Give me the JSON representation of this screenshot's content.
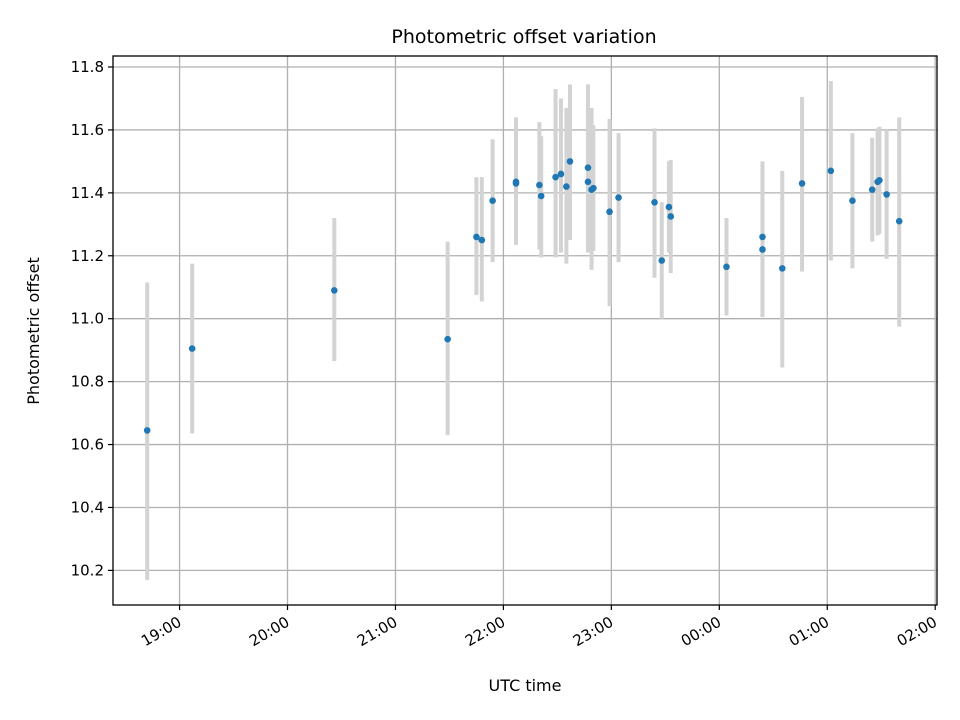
{
  "chart_data": {
    "type": "scatter",
    "title": "Photometric offset variation",
    "xlabel": "UTC time",
    "ylabel": "Photometric offset",
    "x_axis_type": "time",
    "xlim": [
      "18:23",
      "02:01"
    ],
    "ylim": [
      10.09,
      11.835
    ],
    "x_ticks": [
      "19:00",
      "20:00",
      "21:00",
      "22:00",
      "23:00",
      "00:00",
      "01:00",
      "02:00"
    ],
    "y_ticks": [
      10.2,
      10.4,
      10.6,
      10.8,
      11.0,
      11.2,
      11.4,
      11.6,
      11.8
    ],
    "y_tick_labels": [
      "10.2",
      "10.4",
      "10.6",
      "10.8",
      "11.0",
      "11.2",
      "11.4",
      "11.6",
      "11.8"
    ],
    "grid": true,
    "marker_color": "#1f77b4",
    "errorbar_color": "#d3d3d3",
    "points": [
      {
        "t": "18:42",
        "y": 10.645,
        "lo": 10.17,
        "hi": 11.115
      },
      {
        "t": "19:07",
        "y": 10.905,
        "lo": 10.635,
        "hi": 11.175
      },
      {
        "t": "20:26",
        "y": 11.09,
        "lo": 10.865,
        "hi": 11.32
      },
      {
        "t": "21:29",
        "y": 10.935,
        "lo": 10.63,
        "hi": 11.245
      },
      {
        "t": "21:45",
        "y": 11.26,
        "lo": 11.075,
        "hi": 11.45
      },
      {
        "t": "21:48",
        "y": 11.25,
        "lo": 11.055,
        "hi": 11.45
      },
      {
        "t": "21:54",
        "y": 11.375,
        "lo": 11.18,
        "hi": 11.57
      },
      {
        "t": "22:07",
        "y": 11.435,
        "lo": 11.235,
        "hi": 11.64
      },
      {
        "t": "22:07",
        "y": 11.43,
        "lo": 11.235,
        "hi": 11.62
      },
      {
        "t": "22:20",
        "y": 11.425,
        "lo": 11.22,
        "hi": 11.625
      },
      {
        "t": "22:21",
        "y": 11.39,
        "lo": 11.195,
        "hi": 11.58
      },
      {
        "t": "22:29",
        "y": 11.45,
        "lo": 11.195,
        "hi": 11.73
      },
      {
        "t": "22:32",
        "y": 11.46,
        "lo": 11.21,
        "hi": 11.7
      },
      {
        "t": "22:35",
        "y": 11.42,
        "lo": 11.175,
        "hi": 11.67
      },
      {
        "t": "22:37",
        "y": 11.5,
        "lo": 11.25,
        "hi": 11.745
      },
      {
        "t": "22:47",
        "y": 11.48,
        "lo": 11.215,
        "hi": 11.745
      },
      {
        "t": "22:47",
        "y": 11.435,
        "lo": 11.21,
        "hi": 11.65
      },
      {
        "t": "22:49",
        "y": 11.41,
        "lo": 11.155,
        "hi": 11.67
      },
      {
        "t": "22:50",
        "y": 11.415,
        "lo": 11.215,
        "hi": 11.615
      },
      {
        "t": "22:59",
        "y": 11.34,
        "lo": 11.04,
        "hi": 11.635
      },
      {
        "t": "23:04",
        "y": 11.385,
        "lo": 11.18,
        "hi": 11.59
      },
      {
        "t": "23:24",
        "y": 11.37,
        "lo": 11.13,
        "hi": 11.605
      },
      {
        "t": "23:28",
        "y": 11.185,
        "lo": 11.0,
        "hi": 11.37
      },
      {
        "t": "23:32",
        "y": 11.355,
        "lo": 11.21,
        "hi": 11.5
      },
      {
        "t": "23:33",
        "y": 11.325,
        "lo": 11.145,
        "hi": 11.505
      },
      {
        "t": "00:04",
        "y": 11.165,
        "lo": 11.01,
        "hi": 11.32
      },
      {
        "t": "00:24",
        "y": 11.26,
        "lo": 11.015,
        "hi": 11.5
      },
      {
        "t": "00:24",
        "y": 11.22,
        "lo": 11.005,
        "hi": 11.44
      },
      {
        "t": "00:35",
        "y": 11.16,
        "lo": 10.845,
        "hi": 11.47
      },
      {
        "t": "00:46",
        "y": 11.43,
        "lo": 11.15,
        "hi": 11.705
      },
      {
        "t": "01:02",
        "y": 11.47,
        "lo": 11.185,
        "hi": 11.755
      },
      {
        "t": "01:14",
        "y": 11.375,
        "lo": 11.16,
        "hi": 11.59
      },
      {
        "t": "01:25",
        "y": 11.41,
        "lo": 11.245,
        "hi": 11.575
      },
      {
        "t": "01:28",
        "y": 11.435,
        "lo": 11.265,
        "hi": 11.605
      },
      {
        "t": "01:29",
        "y": 11.44,
        "lo": 11.27,
        "hi": 11.61
      },
      {
        "t": "01:33",
        "y": 11.395,
        "lo": 11.19,
        "hi": 11.6
      },
      {
        "t": "01:40",
        "y": 11.31,
        "lo": 10.975,
        "hi": 11.64
      }
    ]
  }
}
